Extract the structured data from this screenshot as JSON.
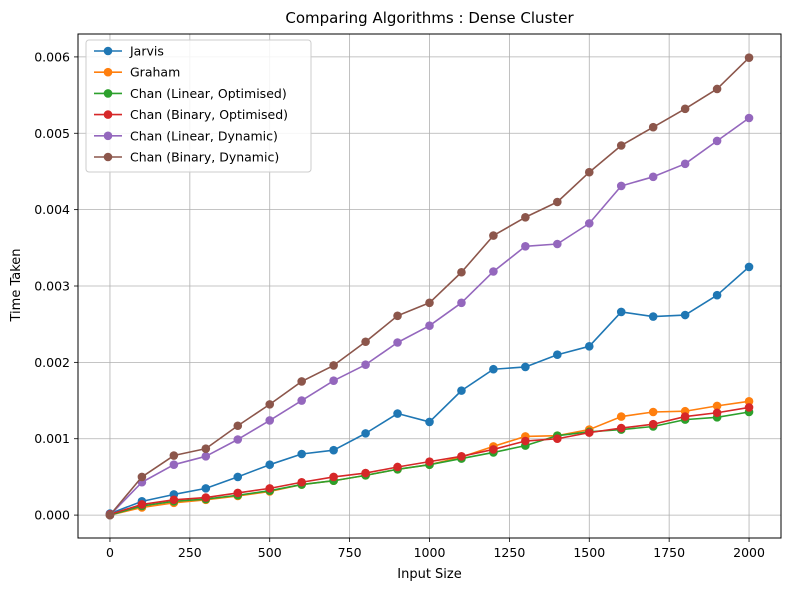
{
  "chart_data": {
    "type": "line",
    "title": "Comparing Algorithms : Dense Cluster",
    "xlabel": "Input Size",
    "ylabel": "Time Taken",
    "xlim": [
      -100,
      2100
    ],
    "ylim": [
      -0.0003,
      0.0063
    ],
    "xticks": [
      0,
      250,
      500,
      750,
      1000,
      1250,
      1500,
      1750,
      2000
    ],
    "xtick_labels": [
      "0",
      "250",
      "500",
      "750",
      "1000",
      "1250",
      "1500",
      "1750",
      "2000"
    ],
    "yticks": [
      0,
      0.001,
      0.002,
      0.003,
      0.004,
      0.005,
      0.006
    ],
    "ytick_labels": [
      "0.000",
      "0.001",
      "0.002",
      "0.003",
      "0.004",
      "0.005",
      "0.006"
    ],
    "grid": true,
    "legend_position": "top-left",
    "x": [
      0,
      100,
      200,
      300,
      400,
      500,
      600,
      700,
      800,
      900,
      1000,
      1100,
      1200,
      1300,
      1400,
      1500,
      1600,
      1700,
      1800,
      1900,
      2000
    ],
    "series": [
      {
        "name": "Jarvis",
        "color": "#1f77b4",
        "values": [
          2e-05,
          0.00018,
          0.00027,
          0.00035,
          0.0005,
          0.00066,
          0.0008,
          0.00085,
          0.00107,
          0.00133,
          0.00122,
          0.00163,
          0.00191,
          0.00194,
          0.0021,
          0.00221,
          0.00266,
          0.0026,
          0.00262,
          0.00288,
          0.00325
        ]
      },
      {
        "name": "Graham",
        "color": "#ff7f0e",
        "values": [
          0.0,
          0.0001,
          0.00016,
          0.0002,
          0.00025,
          0.00031,
          0.0004,
          0.00045,
          0.00052,
          0.0006,
          0.00066,
          0.00076,
          0.0009,
          0.00103,
          0.00104,
          0.00112,
          0.00129,
          0.00135,
          0.00136,
          0.00143,
          0.00149
        ]
      },
      {
        "name": "Chan (Linear, Optimised)",
        "color": "#2ca02c",
        "values": [
          0.0,
          0.00012,
          0.00018,
          0.00021,
          0.00026,
          0.00032,
          0.0004,
          0.00045,
          0.00052,
          0.0006,
          0.00066,
          0.00074,
          0.00082,
          0.00091,
          0.00104,
          0.00109,
          0.00112,
          0.00116,
          0.00125,
          0.00128,
          0.00135
        ]
      },
      {
        "name": "Chan (Binary, Optimised)",
        "color": "#d62728",
        "values": [
          1e-05,
          0.00014,
          0.0002,
          0.00023,
          0.00029,
          0.00035,
          0.00043,
          0.0005,
          0.00055,
          0.00063,
          0.0007,
          0.00077,
          0.00086,
          0.00097,
          0.001,
          0.00108,
          0.00114,
          0.00119,
          0.00129,
          0.00134,
          0.00141
        ]
      },
      {
        "name": "Chan (Linear, Dynamic)",
        "color": "#9467bd",
        "values": [
          0.0,
          0.00043,
          0.00066,
          0.00077,
          0.00099,
          0.00124,
          0.0015,
          0.00176,
          0.00197,
          0.00226,
          0.00248,
          0.00278,
          0.00319,
          0.00352,
          0.00355,
          0.00382,
          0.00431,
          0.00443,
          0.0046,
          0.0049,
          0.0052
        ]
      },
      {
        "name": "Chan (Binary, Dynamic)",
        "color": "#8c564b",
        "values": [
          0.0,
          0.0005,
          0.00078,
          0.00087,
          0.00117,
          0.00145,
          0.00175,
          0.00196,
          0.00227,
          0.00261,
          0.00278,
          0.00318,
          0.00366,
          0.0039,
          0.0041,
          0.00449,
          0.00484,
          0.00508,
          0.00532,
          0.00558,
          0.00599
        ]
      }
    ]
  }
}
